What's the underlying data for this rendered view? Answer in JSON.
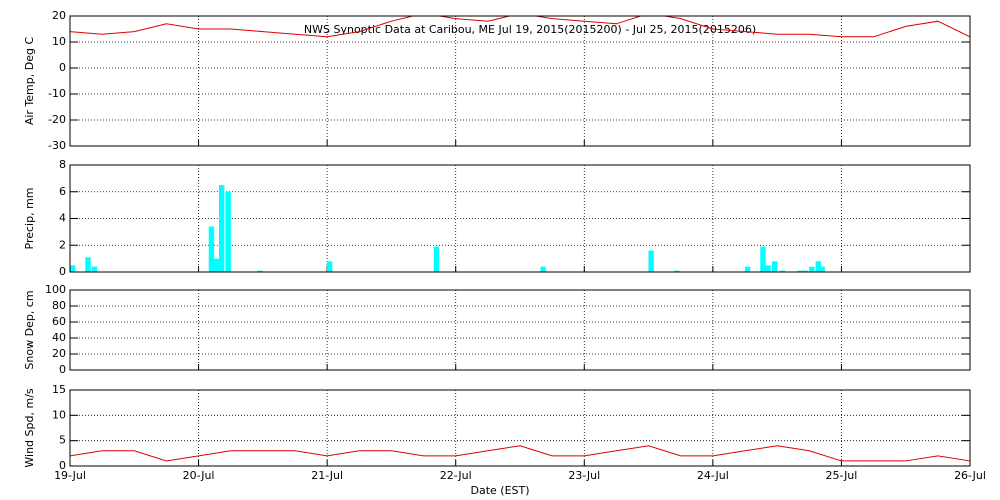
{
  "chart_data": [
    {
      "type": "line",
      "title": "NWS Synoptic Data at Caribou, ME   Jul 19, 2015(2015200) - Jul 25, 2015(2015206)",
      "ylabel": "Air Temp, Deg C",
      "ylim": [
        -30,
        20
      ],
      "yticks": [
        -30,
        -20,
        -10,
        0,
        10,
        20
      ],
      "grid": true,
      "series": [
        {
          "color": "#dd0000",
          "x": [
            0,
            0.25,
            0.5,
            0.75,
            1,
            1.25,
            1.5,
            1.75,
            2,
            2.25,
            2.5,
            2.75,
            3,
            3.25,
            3.5,
            3.75,
            4,
            4.25,
            4.5,
            4.75,
            5,
            5.25,
            5.5,
            5.75,
            6,
            6.25,
            6.5,
            6.75,
            7
          ],
          "values": [
            14,
            13,
            14,
            17,
            15,
            15,
            14,
            13,
            12,
            14,
            18,
            21,
            19,
            18,
            21,
            19,
            18,
            17,
            21,
            19,
            15,
            14,
            13,
            13,
            12,
            12,
            16,
            18,
            12
          ]
        }
      ]
    },
    {
      "type": "bar",
      "ylabel": "Precip, mm",
      "ylim": [
        0,
        8
      ],
      "yticks": [
        0,
        2,
        4,
        6,
        8
      ],
      "grid": true,
      "color": "#00ffff",
      "x": [
        0.02,
        0.14,
        0.19,
        1.1,
        1.14,
        1.18,
        1.23,
        1.48,
        2.02,
        2.85,
        3.68,
        4.52,
        4.72,
        5.27,
        5.39,
        5.43,
        5.48,
        5.54,
        5.68,
        5.72,
        5.77,
        5.82,
        5.85
      ],
      "values": [
        0.5,
        1.1,
        0.4,
        3.4,
        1.0,
        6.5,
        6.0,
        0.1,
        0.8,
        1.9,
        0.4,
        1.6,
        0.1,
        0.4,
        1.9,
        0.5,
        0.8,
        0.1,
        0.1,
        0.1,
        0.4,
        0.8,
        0.4
      ]
    },
    {
      "type": "empty",
      "ylabel": "Snow Dep, cm",
      "ylim": [
        0,
        100
      ],
      "yticks": [
        0,
        20,
        40,
        60,
        80,
        100
      ],
      "grid": true
    },
    {
      "type": "line",
      "ylabel": "Wind Spd, m/s",
      "xlabel": "Date (EST)",
      "ylim": [
        0,
        15
      ],
      "yticks": [
        0,
        5,
        10,
        15
      ],
      "grid": true,
      "xlim": [
        0,
        7
      ],
      "xticks": [
        {
          "value": 0,
          "label": "19-Jul"
        },
        {
          "value": 1,
          "label": "20-Jul"
        },
        {
          "value": 2,
          "label": "21-Jul"
        },
        {
          "value": 3,
          "label": "22-Jul"
        },
        {
          "value": 4,
          "label": "23-Jul"
        },
        {
          "value": 5,
          "label": "24-Jul"
        },
        {
          "value": 6,
          "label": "25-Jul"
        },
        {
          "value": 7,
          "label": "26-Jul"
        }
      ],
      "series": [
        {
          "color": "#dd0000",
          "x": [
            0,
            0.25,
            0.5,
            0.75,
            1,
            1.25,
            1.5,
            1.75,
            2,
            2.25,
            2.5,
            2.75,
            3,
            3.25,
            3.5,
            3.75,
            4,
            4.25,
            4.5,
            4.75,
            5,
            5.25,
            5.5,
            5.75,
            6,
            6.25,
            6.5,
            6.75,
            7
          ],
          "values": [
            2,
            3,
            3,
            1,
            2,
            3,
            3,
            3,
            2,
            3,
            3,
            2,
            2,
            3,
            4,
            2,
            2,
            3,
            4,
            2,
            2,
            3,
            4,
            3,
            1,
            1,
            1,
            2,
            1
          ]
        }
      ]
    }
  ]
}
